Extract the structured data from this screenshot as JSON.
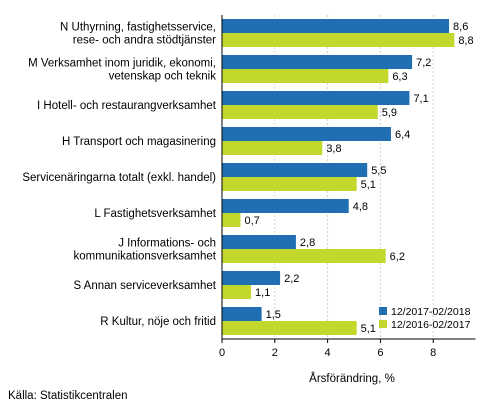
{
  "chart_data": {
    "type": "bar",
    "orientation": "horizontal",
    "categories": [
      [
        "N Uthyrning, fastighetsservice,",
        "rese- och andra stödtjänster"
      ],
      [
        "M Verksamhet inom juridik, ekonomi,",
        "vetenskap och teknik"
      ],
      [
        "I Hotell- och restaurangverksamhet"
      ],
      [
        "H Transport och magasinering"
      ],
      [
        "Servicenäringarna totalt (exkl. handel)"
      ],
      [
        "L Fastighetsverksamhet"
      ],
      [
        "J Informations- och",
        "kommunikationsverksamhet"
      ],
      [
        "S Annan serviceverksamhet"
      ],
      [
        "R Kultur, nöje och fritid"
      ]
    ],
    "series": [
      {
        "name": "12/2017-02/2018",
        "color": "#1f6fb2",
        "values": [
          8.6,
          7.2,
          7.1,
          6.4,
          5.5,
          4.8,
          2.8,
          2.2,
          1.5
        ],
        "labels": [
          "8,6",
          "7,2",
          "7,1",
          "6,4",
          "5,5",
          "4,8",
          "2,8",
          "2,2",
          "1,5"
        ]
      },
      {
        "name": "12/2016-02/2017",
        "color": "#c2d82d",
        "values": [
          8.8,
          6.3,
          5.9,
          3.8,
          5.1,
          0.7,
          6.2,
          1.1,
          5.1
        ],
        "labels": [
          "8,8",
          "6,3",
          "5,9",
          "3,8",
          "5,1",
          "0,7",
          "6,2",
          "1,1",
          "5,1"
        ]
      }
    ],
    "xlim": [
      0,
      9.6
    ],
    "xticks": [
      0,
      2,
      4,
      6,
      8
    ],
    "xtick_labels": [
      "0",
      "2",
      "4",
      "6",
      "8"
    ],
    "xlabel": "Årsförändring, %",
    "grid": true,
    "legend_position": "bottom-right"
  },
  "source": "Källa: Statistikcentralen"
}
